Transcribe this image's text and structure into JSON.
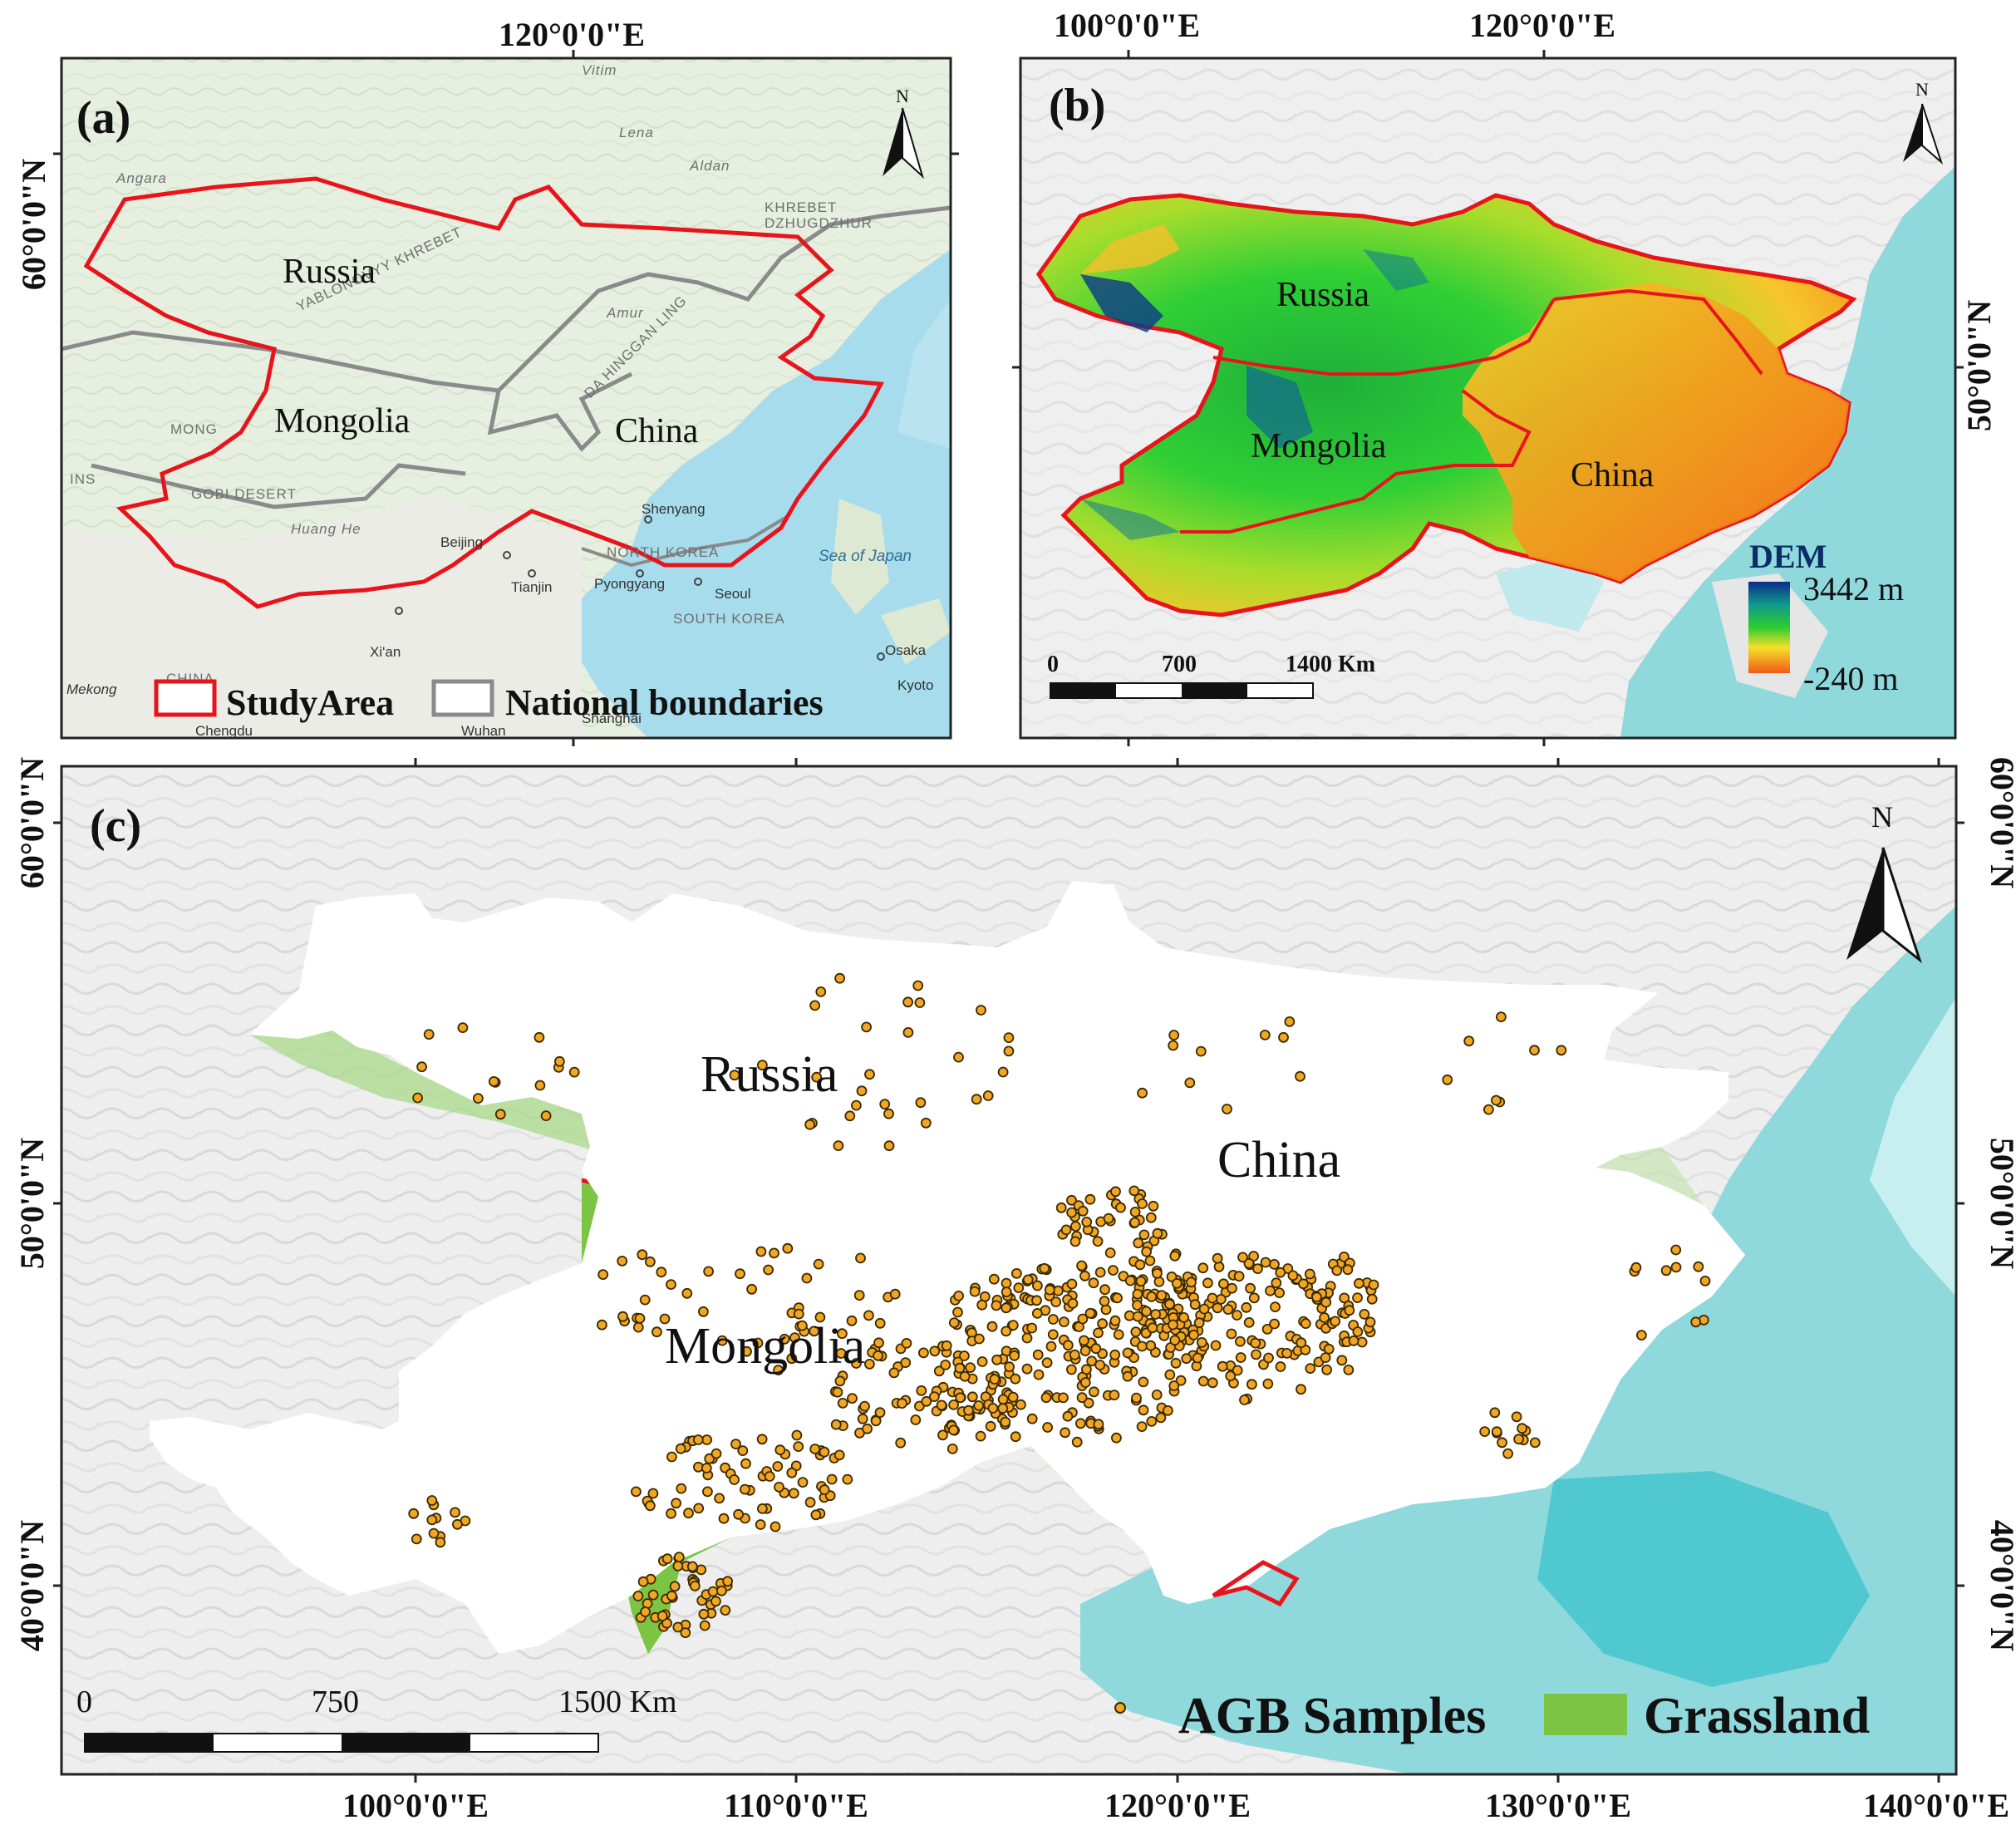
{
  "panels": {
    "a": {
      "label": "(a)",
      "lon_labels": [
        "120°0'0\"E"
      ],
      "lat_labels": [
        "60°0'0\"N"
      ],
      "countries": [
        "Russia",
        "Mongolia",
        "China"
      ],
      "basemap_labels": [
        "YABLONOVYY KHREBET",
        "KHREBET",
        "DZHUGDZHUR",
        "DA HINGGAN LING",
        "MONG",
        "GOBI DESERT",
        "NORTH KOREA",
        "SOUTH KOREA",
        "CHINA",
        "Angara",
        "Lena",
        "Aldan",
        "Amur",
        "Huang He",
        "Vitim",
        "INS"
      ],
      "cities": [
        "Shenyang",
        "Beijing",
        "Tianjin",
        "Pyongyang",
        "Seoul",
        "Xi'an",
        "Osaka",
        "Chengdu",
        "Wuhan",
        "Shanghai",
        "Kyoto",
        "Mekong"
      ],
      "sea_label": "Sea of Japan",
      "north": "N",
      "legend": {
        "study_area": "StudyArea",
        "national_boundaries": "National boundaries"
      }
    },
    "b": {
      "label": "(b)",
      "lon_labels": [
        "100°0'0\"E",
        "120°0'0\"E"
      ],
      "lat_labels": [
        "50°0'0\"N"
      ],
      "countries": [
        "Russia",
        "Mongolia",
        "China"
      ],
      "north": "N",
      "dem": {
        "title": "DEM",
        "max": "3442 m",
        "min": "-240 m"
      },
      "scale": [
        "0",
        "700",
        "1400 Km"
      ]
    },
    "c": {
      "label": "(c)",
      "lon_labels": [
        "100°0'0\"E",
        "110°0'0\"E",
        "120°0'0\"E",
        "130°0'0\"E",
        "140°0'0\"E"
      ],
      "lat_labels": [
        "60°0'0\"N",
        "50°0'0\"N",
        "40°0'0\"N"
      ],
      "countries": [
        "Russia",
        "China",
        "Mongolia"
      ],
      "north": "N",
      "scale": [
        "0",
        "750",
        "1500 Km"
      ],
      "legend": {
        "samples": "AGB Samples",
        "grassland": "Grassland"
      }
    }
  },
  "colors": {
    "study_area": "#e8141b",
    "national_boundary": "#8a8a8a",
    "grassland": "#7cc544",
    "sample_fill": "#f2a623",
    "sample_edge": "#3a2a00",
    "sea": "#8fd9dd",
    "dem_high": "#0b2d8a",
    "dem_mid": "#2ecc2e",
    "dem_low": "#f25a1a"
  }
}
